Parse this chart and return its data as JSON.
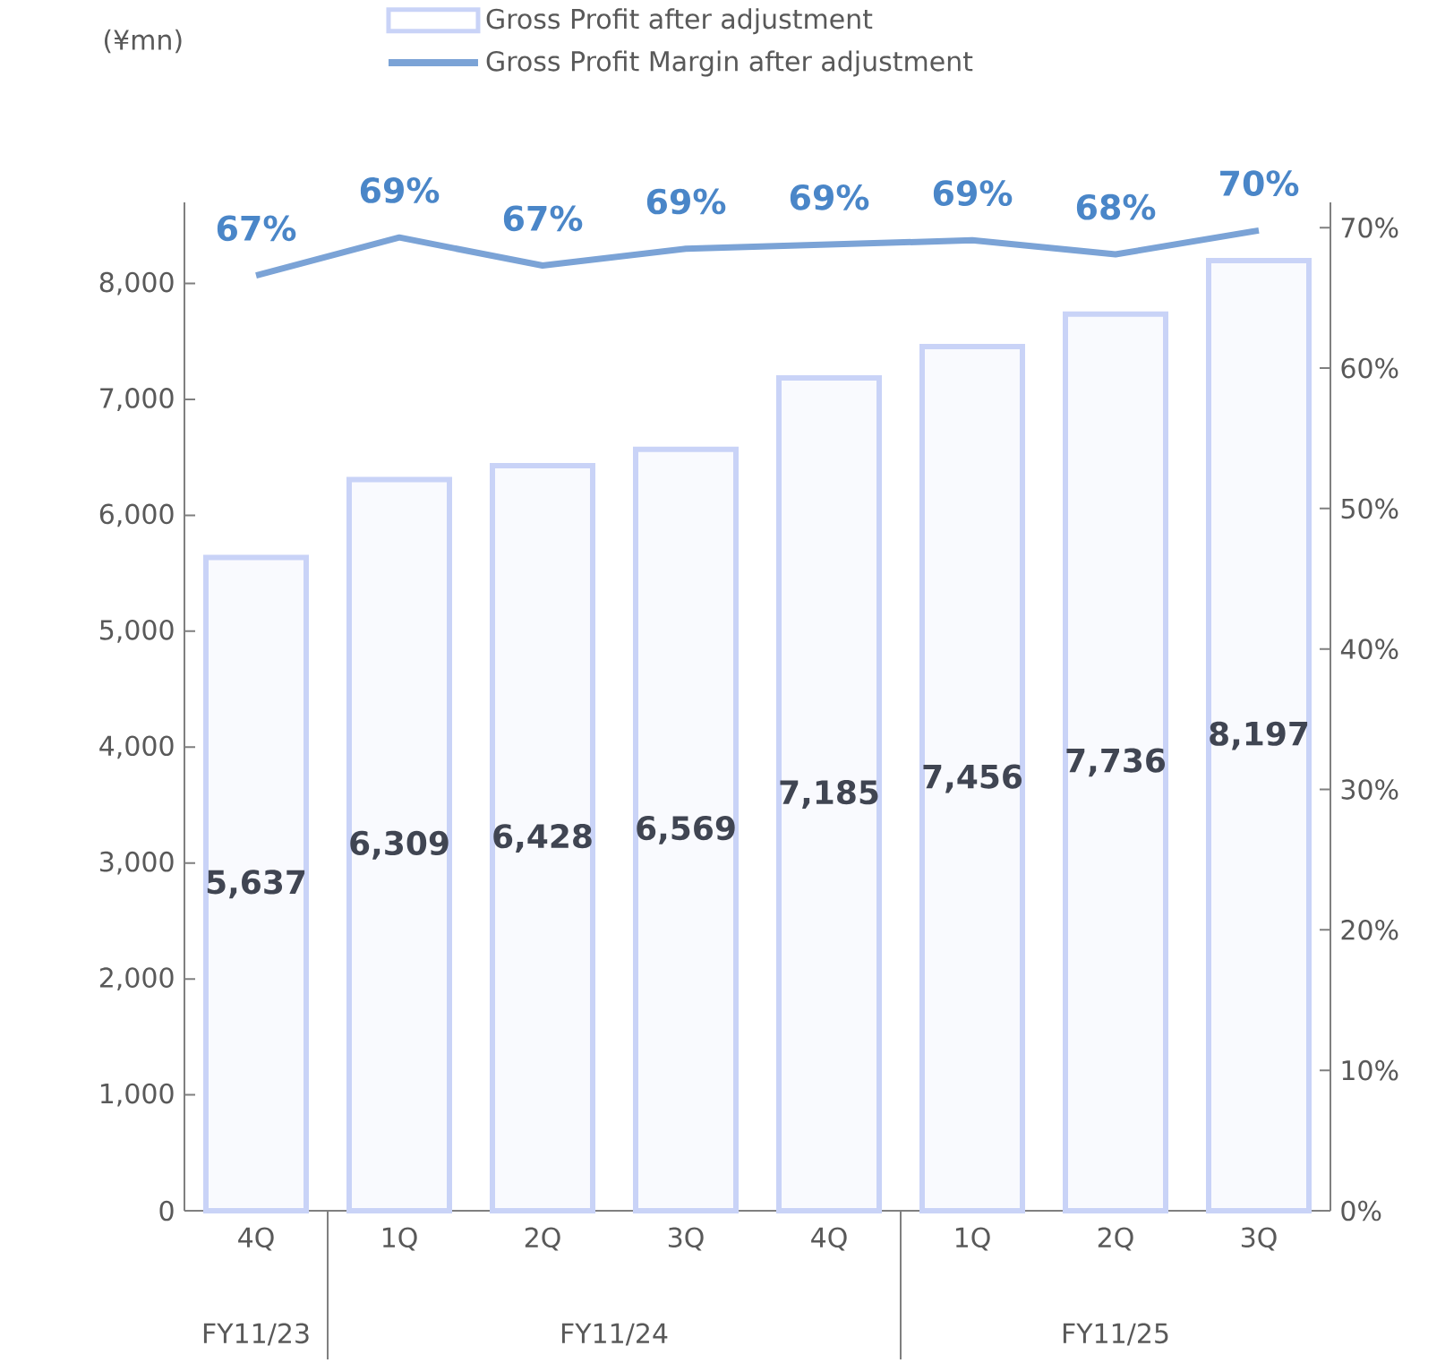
{
  "chart_data": {
    "type": "bar",
    "legend": "top",
    "categories": [
      "4Q",
      "1Q",
      "2Q",
      "3Q",
      "4Q",
      "1Q",
      "2Q",
      "3Q"
    ],
    "series": [
      {
        "name": "Gross Profit after adjustment",
        "color": "#c9d3f7",
        "values": [
          5637,
          6309,
          6428,
          6569,
          7185,
          7456,
          7736,
          8197
        ],
        "value_labels": [
          "5,637",
          "6,309",
          "6,428",
          "6,569",
          "7,185",
          "7,456",
          "7,736",
          "8,197"
        ]
      },
      {
        "name": "Gross Profit Margin after adjustment",
        "type": "line",
        "axis": "y2",
        "color": "#7ba3d6",
        "values": [
          66.6,
          69.3,
          67.3,
          68.5,
          68.8,
          69.1,
          68.1,
          69.8
        ],
        "value_labels": [
          "67%",
          "69%",
          "67%",
          "69%",
          "69%",
          "69%",
          "68%",
          "70%"
        ]
      }
    ],
    "ylim": [
      0,
      8700
    ],
    "yticks": [
      0,
      {
        "value": 1000,
        "label": "1,000"
      },
      {
        "value": 2000,
        "label": "2,000"
      },
      {
        "value": 3000,
        "label": "3,000"
      },
      {
        "value": 4000,
        "label": "4,000"
      },
      {
        "value": 5000,
        "label": "5,000"
      },
      {
        "value": 6000,
        "label": "6,000"
      },
      {
        "value": 7000,
        "label": "7,000"
      },
      {
        "value": 8000,
        "label": "8,000"
      }
    ],
    "y2lim": [
      0,
      71.8
    ],
    "y2ticks": [
      {
        "value": 0,
        "label": "0%"
      },
      {
        "value": 10,
        "label": "10%"
      },
      {
        "value": 20,
        "label": "20%"
      },
      {
        "value": 30,
        "label": "30%"
      },
      {
        "value": 40,
        "label": "40%"
      },
      {
        "value": 50,
        "label": "50%"
      },
      {
        "value": 60,
        "label": "60%"
      },
      {
        "value": 70,
        "label": "70%"
      }
    ],
    "annotations": [
      "(¥mn)",
      "FY11/23",
      "FY11/24",
      "FY11/25"
    ]
  }
}
